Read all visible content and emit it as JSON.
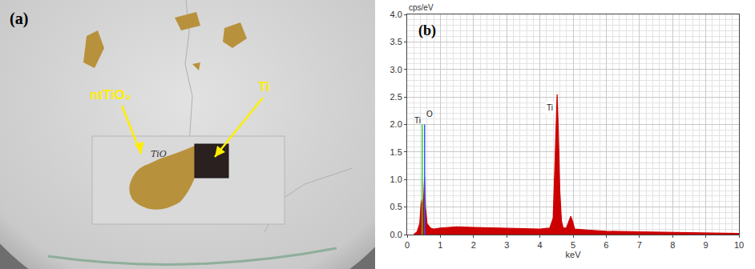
{
  "photo": {
    "panel": "(a)",
    "arrows": [
      {
        "label": "ntTiO₂"
      },
      {
        "label": "Ti"
      }
    ],
    "slide_text": "TiO"
  },
  "chart_data": {
    "type": "area",
    "panel": "(b)",
    "y_label": "cps/eV",
    "x_label": "keV",
    "x": [
      0.2,
      0.3,
      0.38,
      0.42,
      0.45,
      0.48,
      0.5,
      0.525,
      0.55,
      0.6,
      0.7,
      0.8,
      1.0,
      1.5,
      2.0,
      2.5,
      3.0,
      3.5,
      4.0,
      4.3,
      4.4,
      4.45,
      4.5,
      4.52,
      4.55,
      4.6,
      4.65,
      4.7,
      4.8,
      4.88,
      4.93,
      4.98,
      5.05,
      5.5,
      6.0,
      7.0,
      8.0,
      9.0,
      10.0
    ],
    "values": [
      0.0,
      0.05,
      0.2,
      0.55,
      0.65,
      0.4,
      0.7,
      1.05,
      0.5,
      0.2,
      0.12,
      0.1,
      0.12,
      0.14,
      0.13,
      0.12,
      0.11,
      0.1,
      0.1,
      0.12,
      0.3,
      1.2,
      2.45,
      2.55,
      2.0,
      0.8,
      0.25,
      0.12,
      0.12,
      0.25,
      0.33,
      0.25,
      0.1,
      0.08,
      0.06,
      0.05,
      0.04,
      0.03,
      0.02
    ],
    "color": "#cc0000",
    "element_lines": [
      {
        "text": "Ti",
        "x": 0.452,
        "y": 2.0,
        "color": "#33cc33"
      },
      {
        "text": "O",
        "x": 0.525,
        "y": 2.0,
        "color": "#3355ff"
      }
    ],
    "annotations": [
      {
        "text": "Ti",
        "x": 4.45,
        "y": 2.3
      }
    ],
    "xlim": [
      0,
      10
    ],
    "xticks": [
      0,
      1,
      2,
      3,
      4,
      5,
      6,
      7,
      8,
      9,
      10
    ],
    "ylim": [
      0,
      4
    ],
    "yticks": [
      {
        "value": 0,
        "label": "0.0"
      },
      0.5,
      {
        "value": 1,
        "label": "1.0"
      },
      1.5,
      {
        "value": 2,
        "label": "2.0"
      },
      2.5,
      {
        "value": 3,
        "label": "3.0"
      },
      3.5,
      {
        "value": 4,
        "label": "4.0"
      }
    ],
    "grid": true
  }
}
